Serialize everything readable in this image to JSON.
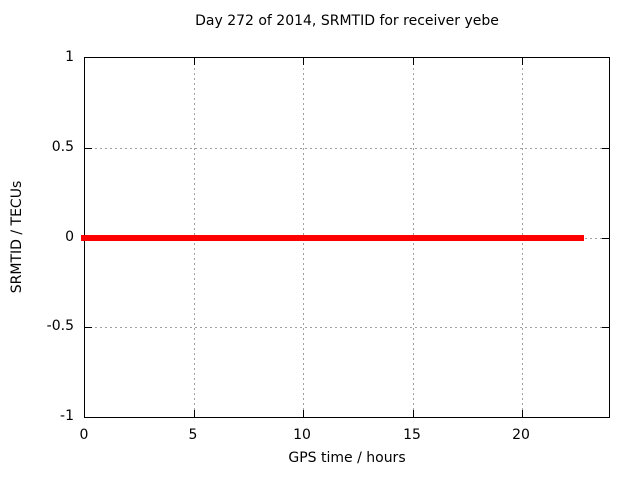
{
  "chart_data": {
    "type": "line",
    "title": "Day 272 of 2014, SRMTID for receiver yebe",
    "xlabel": "GPS time / hours",
    "ylabel": "SRMTID / TECUs",
    "xlim": [
      0,
      24
    ],
    "ylim": [
      -1,
      1
    ],
    "x_ticks": [
      0,
      5,
      10,
      15,
      20
    ],
    "y_ticks": [
      -1,
      -0.5,
      0,
      0.5,
      1
    ],
    "grid": true,
    "legend_position": "none",
    "series": [
      {
        "name": "SRMTID",
        "color": "#ff0000",
        "line_thickness_px": 6,
        "x": [
          -0.2,
          22.85
        ],
        "y": [
          0,
          0
        ],
        "description": "Constant SRMTID value of 0 TECUs plotted as a thick red horizontal line from approximately 0 to 22.9 GPS hours"
      }
    ]
  },
  "colors": {
    "background": "#ffffff",
    "axis": "#000000",
    "grid": "#a0a0a0",
    "text": "#000000",
    "line": "#ff0000"
  }
}
